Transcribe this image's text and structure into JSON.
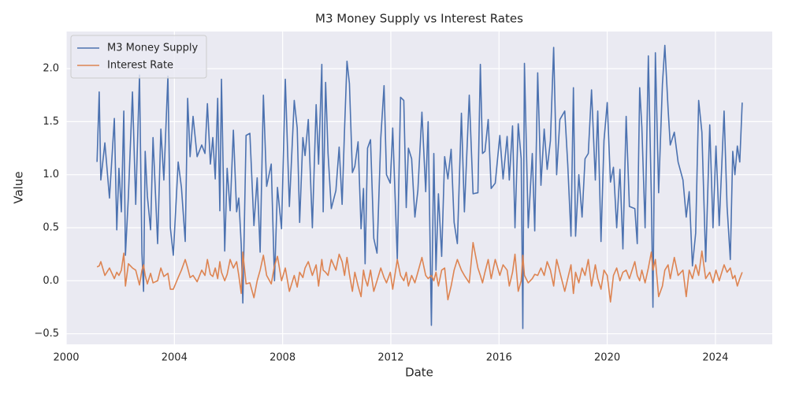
{
  "chart_data": {
    "type": "line",
    "title": "M3 Money Supply vs Interest Rates",
    "x_label": "Date",
    "y_label": "Value",
    "x": [
      2001.14,
      2001.22,
      2001.28,
      2001.43,
      2001.6,
      2001.78,
      2001.87,
      2001.95,
      2002.04,
      2002.13,
      2002.19,
      2002.3,
      2002.45,
      2002.57,
      2002.71,
      2002.8,
      2002.86,
      2002.92,
      2003.0,
      2003.12,
      2003.21,
      2003.38,
      2003.5,
      2003.61,
      2003.76,
      2003.85,
      2003.96,
      2004.14,
      2004.26,
      2004.4,
      2004.49,
      2004.58,
      2004.69,
      2004.84,
      2005.01,
      2005.13,
      2005.22,
      2005.33,
      2005.42,
      2005.51,
      2005.6,
      2005.68,
      2005.74,
      2005.86,
      2005.95,
      2006.06,
      2006.18,
      2006.3,
      2006.38,
      2006.47,
      2006.53,
      2006.65,
      2006.79,
      2006.94,
      2007.06,
      2007.17,
      2007.29,
      2007.41,
      2007.58,
      2007.7,
      2007.81,
      2007.96,
      2008.1,
      2008.25,
      2008.43,
      2008.54,
      2008.63,
      2008.75,
      2008.83,
      2008.95,
      2009.1,
      2009.24,
      2009.33,
      2009.45,
      2009.5,
      2009.59,
      2009.68,
      2009.8,
      2009.97,
      2010.09,
      2010.2,
      2010.29,
      2010.38,
      2010.47,
      2010.58,
      2010.67,
      2010.79,
      2010.9,
      2010.99,
      2011.05,
      2011.14,
      2011.25,
      2011.37,
      2011.49,
      2011.63,
      2011.75,
      2011.84,
      2011.98,
      2012.07,
      2012.24,
      2012.36,
      2012.48,
      2012.57,
      2012.65,
      2012.77,
      2012.89,
      2013.0,
      2013.15,
      2013.29,
      2013.38,
      2013.5,
      2013.59,
      2013.67,
      2013.76,
      2013.88,
      2013.99,
      2014.11,
      2014.23,
      2014.34,
      2014.46,
      2014.61,
      2014.72,
      2014.9,
      2015.04,
      2015.22,
      2015.31,
      2015.39,
      2015.48,
      2015.6,
      2015.71,
      2015.86,
      2016.03,
      2016.15,
      2016.3,
      2016.38,
      2016.5,
      2016.59,
      2016.71,
      2016.82,
      2016.88,
      2016.94,
      2017.08,
      2017.23,
      2017.32,
      2017.43,
      2017.55,
      2017.67,
      2017.78,
      2017.9,
      2018.02,
      2018.13,
      2018.25,
      2018.43,
      2018.54,
      2018.66,
      2018.75,
      2018.83,
      2018.95,
      2019.07,
      2019.18,
      2019.3,
      2019.42,
      2019.56,
      2019.65,
      2019.77,
      2019.88,
      2020.0,
      2020.12,
      2020.23,
      2020.35,
      2020.47,
      2020.58,
      2020.7,
      2020.82,
      2021.02,
      2021.11,
      2021.2,
      2021.28,
      2021.4,
      2021.52,
      2021.63,
      2021.69,
      2021.78,
      2021.9,
      2022.04,
      2022.13,
      2022.25,
      2022.33,
      2022.48,
      2022.62,
      2022.8,
      2022.92,
      2023.03,
      2023.15,
      2023.27,
      2023.38,
      2023.5,
      2023.64,
      2023.79,
      2023.91,
      2024.02,
      2024.14,
      2024.32,
      2024.43,
      2024.55,
      2024.64,
      2024.72,
      2024.81,
      2024.9,
      2024.99
    ],
    "series": [
      {
        "name": "M3 Money Supply",
        "color": "#4c72b0",
        "values": [
          1.12,
          1.78,
          0.95,
          1.3,
          0.78,
          1.53,
          0.48,
          1.06,
          0.65,
          1.6,
          0.24,
          0.8,
          1.78,
          0.72,
          1.94,
          0.26,
          -0.1,
          1.22,
          0.8,
          0.48,
          1.35,
          0.35,
          1.43,
          0.95,
          1.93,
          0.5,
          0.24,
          1.12,
          0.88,
          0.37,
          1.72,
          1.17,
          1.55,
          1.17,
          1.28,
          1.2,
          1.67,
          1.1,
          1.35,
          0.96,
          1.72,
          0.66,
          1.9,
          0.28,
          1.06,
          0.66,
          1.42,
          0.65,
          0.78,
          0.34,
          -0.21,
          1.37,
          1.39,
          0.52,
          0.97,
          0.27,
          1.75,
          0.89,
          1.1,
          0.0,
          0.88,
          0.49,
          1.9,
          0.7,
          1.7,
          1.44,
          0.55,
          1.35,
          1.18,
          1.52,
          0.5,
          1.66,
          1.1,
          2.04,
          0.65,
          1.87,
          1.2,
          0.68,
          0.85,
          1.26,
          0.72,
          1.43,
          2.07,
          1.86,
          1.02,
          1.08,
          1.31,
          0.49,
          0.87,
          0.16,
          1.25,
          1.33,
          0.4,
          0.26,
          1.35,
          1.84,
          1.0,
          0.92,
          1.44,
          0.2,
          1.73,
          1.7,
          0.69,
          1.25,
          1.15,
          0.6,
          0.85,
          1.59,
          0.84,
          1.5,
          -0.42,
          1.2,
          0.1,
          0.82,
          0.23,
          1.17,
          0.96,
          1.24,
          0.55,
          0.35,
          1.58,
          0.65,
          1.75,
          0.82,
          0.83,
          2.04,
          1.2,
          1.22,
          1.52,
          0.87,
          0.92,
          1.37,
          0.96,
          1.36,
          0.95,
          1.46,
          0.5,
          1.48,
          1.15,
          -0.45,
          2.05,
          0.5,
          1.2,
          0.47,
          1.96,
          0.9,
          1.43,
          1.05,
          1.32,
          2.2,
          1.0,
          1.52,
          1.6,
          1.1,
          0.42,
          1.82,
          0.42,
          1.0,
          0.6,
          1.15,
          1.2,
          1.8,
          0.95,
          1.6,
          0.37,
          1.32,
          1.68,
          0.93,
          1.07,
          0.5,
          1.05,
          0.3,
          1.55,
          0.7,
          0.68,
          0.35,
          1.82,
          1.45,
          0.5,
          2.12,
          0.8,
          -0.25,
          2.15,
          0.83,
          1.85,
          2.22,
          1.62,
          1.28,
          1.4,
          1.12,
          0.95,
          0.6,
          0.84,
          0.14,
          0.45,
          1.7,
          1.4,
          0.18,
          1.47,
          0.5,
          1.27,
          0.52,
          1.6,
          0.7,
          0.2,
          1.22,
          1.0,
          1.27,
          1.12,
          1.68
        ]
      },
      {
        "name": "Interest Rate",
        "color": "#dd8452",
        "values": [
          0.13,
          0.14,
          0.18,
          0.05,
          0.12,
          0.02,
          0.08,
          0.05,
          0.1,
          0.26,
          -0.05,
          0.16,
          0.12,
          0.1,
          -0.04,
          0.1,
          0.15,
          0.05,
          -0.03,
          0.07,
          -0.02,
          0.0,
          0.12,
          0.04,
          0.07,
          -0.08,
          -0.08,
          0.03,
          0.1,
          0.2,
          0.12,
          0.03,
          0.05,
          -0.01,
          0.1,
          0.05,
          0.2,
          0.06,
          0.04,
          0.12,
          0.02,
          0.18,
          0.08,
          0.0,
          0.06,
          0.2,
          0.12,
          0.18,
          0.05,
          -0.12,
          0.27,
          -0.03,
          -0.02,
          -0.16,
          0.0,
          0.1,
          0.24,
          0.05,
          -0.03,
          0.14,
          0.23,
          0.0,
          0.12,
          -0.1,
          0.05,
          -0.06,
          0.08,
          0.03,
          0.12,
          0.18,
          0.05,
          0.15,
          -0.05,
          0.2,
          0.1,
          0.08,
          0.05,
          0.2,
          0.1,
          0.25,
          0.18,
          0.05,
          0.22,
          0.06,
          -0.1,
          0.08,
          -0.05,
          -0.15,
          0.1,
          0.02,
          -0.05,
          0.1,
          -0.1,
          0.0,
          0.12,
          0.03,
          -0.02,
          0.08,
          -0.08,
          0.2,
          0.05,
          0.0,
          0.08,
          -0.05,
          0.05,
          -0.02,
          0.08,
          0.22,
          0.05,
          0.02,
          0.05,
          0.0,
          0.08,
          -0.05,
          0.1,
          0.12,
          -0.18,
          -0.05,
          0.1,
          0.2,
          0.1,
          0.05,
          -0.02,
          0.36,
          0.12,
          0.05,
          -0.02,
          0.08,
          0.2,
          0.02,
          0.2,
          0.05,
          0.15,
          0.1,
          -0.05,
          0.08,
          0.25,
          -0.1,
          0.0,
          0.24,
          0.05,
          -0.02,
          0.02,
          0.06,
          0.05,
          0.12,
          0.05,
          0.18,
          0.1,
          -0.05,
          0.2,
          0.08,
          -0.1,
          0.02,
          0.15,
          -0.12,
          0.08,
          -0.02,
          0.12,
          0.05,
          0.2,
          -0.05,
          0.15,
          0.02,
          -0.08,
          0.1,
          0.05,
          -0.2,
          0.05,
          0.12,
          0.0,
          0.08,
          0.1,
          0.02,
          0.18,
          0.05,
          0.0,
          0.1,
          -0.02,
          0.12,
          0.27,
          0.1,
          0.2,
          -0.15,
          -0.05,
          0.1,
          0.15,
          0.02,
          0.22,
          0.05,
          0.1,
          -0.15,
          0.1,
          0.02,
          0.15,
          0.05,
          0.28,
          0.02,
          0.08,
          -0.02,
          0.1,
          0.0,
          0.15,
          0.08,
          0.12,
          0.02,
          0.05,
          -0.05,
          0.02,
          0.08
        ]
      }
    ],
    "xlim": [
      2000,
      2026.1
    ],
    "xticks": [
      2000,
      2004,
      2008,
      2012,
      2016,
      2020,
      2024
    ],
    "ylim": [
      -0.6,
      2.35
    ],
    "yticks": [
      {
        "value": -0.5,
        "label": "−0.5"
      },
      {
        "value": 0,
        "label": "0.0"
      },
      {
        "value": 0.5,
        "label": "0.5"
      },
      {
        "value": 1,
        "label": "1.0"
      },
      {
        "value": 1.5,
        "label": "1.5"
      },
      {
        "value": 2,
        "label": "2.0"
      }
    ],
    "grid": true,
    "legend": "upper left"
  }
}
